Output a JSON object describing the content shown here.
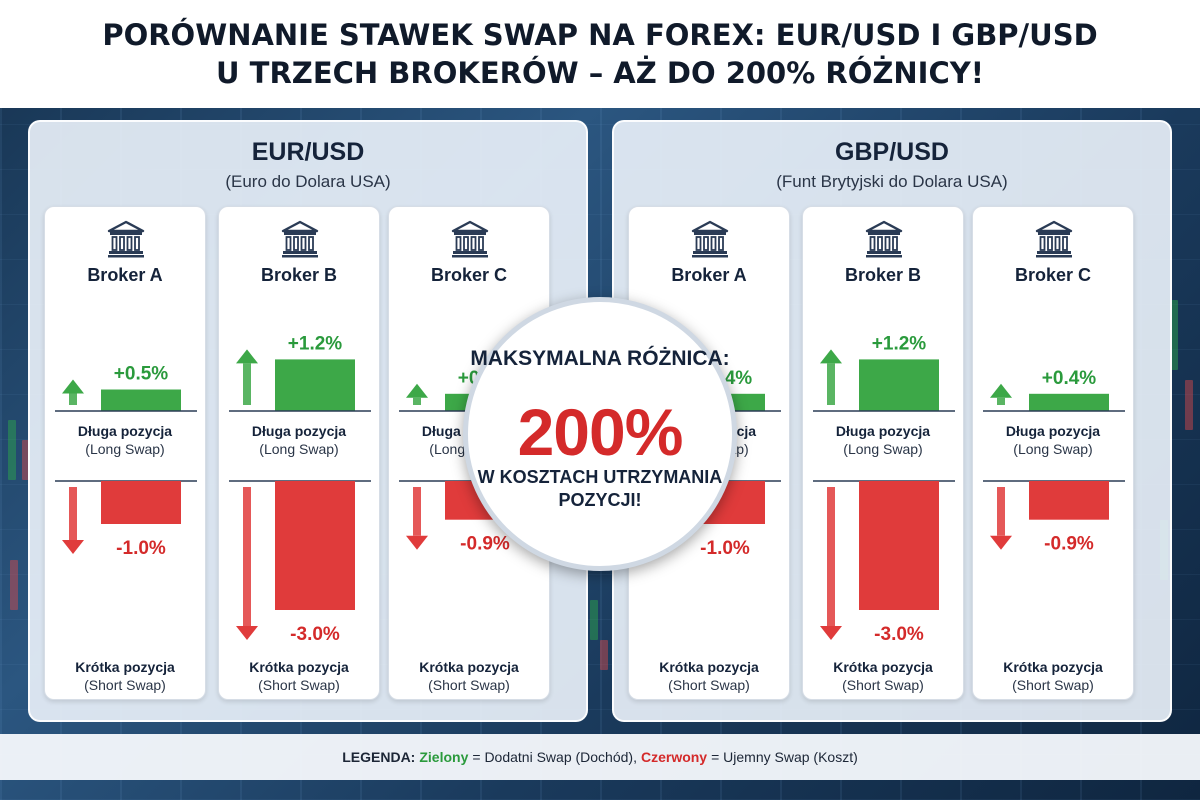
{
  "header": {
    "title_line1": "PORÓWNANIE STAWEK SWAP NA FOREX: EUR/USD I GBP/USD",
    "title_line2": "U TRZECH BROKERÓW – AŻ DO 200% RÓŻNICY!"
  },
  "colors": {
    "positive": "#3da848",
    "negative": "#e03b3b",
    "positive_text": "#2a9a3c",
    "negative_text": "#d42a2a"
  },
  "labels": {
    "long": "Długa pozycja",
    "long_sub": "(Long Swap)",
    "short": "Krótka pozycja",
    "short_sub": "(Short Swap)"
  },
  "badge": {
    "top": "MAKSYMALNA RÓŻNICA:",
    "value": "200%",
    "bottom": "W KOSZTACH UTRZYMANIA POZYCJI!"
  },
  "legend": {
    "prefix": "LEGENDA:",
    "green_word": "Zielony",
    "green_text": "= Dodatni Swap (Dochód),",
    "red_word": "Czerwony",
    "red_text": "= Ujemny Swap (Koszt)"
  },
  "chart_data": [
    {
      "type": "bar",
      "title": "EUR/USD",
      "subtitle": "(Euro do Dolara USA)",
      "categories": [
        "Broker A",
        "Broker B",
        "Broker C"
      ],
      "series": [
        {
          "name": "Długa pozycja (Long Swap)",
          "values": [
            0.5,
            1.2,
            0.4
          ],
          "labels": [
            "+0.5%",
            "+1.2%",
            "+0.4%"
          ]
        },
        {
          "name": "Krótka pozycja (Short Swap)",
          "values": [
            -1.0,
            -3.0,
            -0.9
          ],
          "labels": [
            "-1.0%",
            "-3.0%",
            "-0.9%"
          ]
        }
      ]
    },
    {
      "type": "bar",
      "title": "GBP/USD",
      "subtitle": "(Funt Brytyjski do Dolara USA)",
      "categories": [
        "Broker A",
        "Broker B",
        "Broker C"
      ],
      "series": [
        {
          "name": "Długa pozycja (Long Swap)",
          "values": [
            0.4,
            1.2,
            0.4
          ],
          "labels": [
            "+0.4%",
            "+1.2%",
            "+0.4%"
          ]
        },
        {
          "name": "Krótka pozycja (Short Swap)",
          "values": [
            -1.0,
            -3.0,
            -0.9
          ],
          "labels": [
            "-1.0%",
            "-3.0%",
            "-0.9%"
          ]
        }
      ]
    }
  ]
}
